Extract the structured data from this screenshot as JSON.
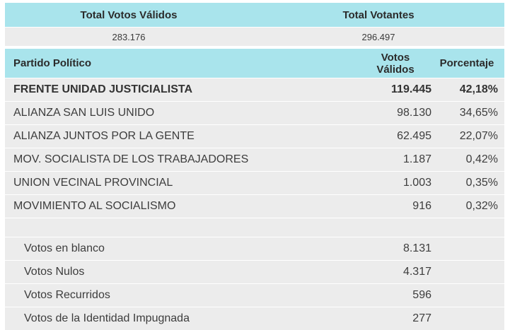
{
  "summary": {
    "labels": {
      "valid": "Total Votos Válidos",
      "voters": "Total Votantes"
    },
    "values": {
      "valid": "283.176",
      "voters": "296.497"
    }
  },
  "table": {
    "headers": {
      "party": "Partido Político",
      "votes": "Votos Válidos",
      "percent": "Porcentaje"
    },
    "rows": [
      {
        "party": "FRENTE UNIDAD JUSTICIALISTA",
        "votes": "119.445",
        "percent": "42,18%"
      },
      {
        "party": "ALIANZA SAN LUIS UNIDO",
        "votes": "98.130",
        "percent": "34,65%"
      },
      {
        "party": "ALIANZA JUNTOS POR LA GENTE",
        "votes": "62.495",
        "percent": "22,07%"
      },
      {
        "party": "MOV. SOCIALISTA DE LOS TRABAJADORES",
        "votes": "1.187",
        "percent": "0,42%"
      },
      {
        "party": "UNION VECINAL PROVINCIAL",
        "votes": "1.003",
        "percent": "0,35%"
      },
      {
        "party": "MOVIMIENTO AL SOCIALISMO",
        "votes": "916",
        "percent": "0,32%"
      }
    ],
    "other": [
      {
        "label": "Votos en blanco",
        "votes": "8.131"
      },
      {
        "label": "Votos Nulos",
        "votes": "4.317"
      },
      {
        "label": "Votos Recurridos",
        "votes": "596"
      },
      {
        "label": "Votos de la Identidad Impugnada",
        "votes": "277"
      }
    ]
  },
  "colors": {
    "header_bg": "#a9e4ec",
    "row_bg": "#ececec"
  }
}
